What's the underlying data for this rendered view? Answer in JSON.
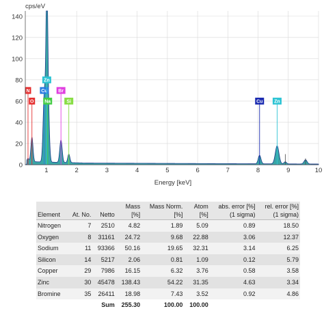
{
  "chart_data": {
    "type": "area",
    "title": "",
    "ylabel": "cps/eV",
    "xlabel": "Energy [keV]",
    "xlim": [
      0.3,
      10.0
    ],
    "ylim": [
      0,
      145
    ],
    "x_ticks": [
      1,
      2,
      3,
      4,
      5,
      6,
      7,
      8,
      9,
      10
    ],
    "y_ticks": [
      0,
      20,
      40,
      60,
      80,
      100,
      120,
      140
    ],
    "grid": true,
    "fill_color": "#3aa6a6",
    "line_color": "#1a3a8a",
    "peaks": [
      {
        "x": 0.39,
        "y": 3,
        "w": 0.03
      },
      {
        "x": 0.52,
        "y": 23,
        "w": 0.035
      },
      {
        "x": 0.93,
        "y": 65,
        "w": 0.04
      },
      {
        "x": 1.01,
        "y": 127,
        "w": 0.03
      },
      {
        "x": 1.05,
        "y": 60,
        "w": 0.04
      },
      {
        "x": 1.48,
        "y": 21,
        "w": 0.04
      },
      {
        "x": 1.74,
        "y": 8,
        "w": 0.035
      },
      {
        "x": 8.05,
        "y": 8,
        "w": 0.045
      },
      {
        "x": 8.63,
        "y": 17,
        "w": 0.06
      },
      {
        "x": 8.9,
        "y": 2,
        "w": 0.04
      },
      {
        "x": 9.57,
        "y": 4,
        "w": 0.05
      }
    ],
    "markers": [
      {
        "label": "N",
        "x": 0.39,
        "y": 70,
        "color": "#e53030",
        "line_top": 70
      },
      {
        "label": "Cu",
        "x": 0.93,
        "y": 70,
        "color": "#2a7de1",
        "line_top": 70
      },
      {
        "label": "Zn",
        "x": 1.01,
        "y": 80,
        "color": "#2ec4d4",
        "line_top": 80
      },
      {
        "label": "Br",
        "x": 1.48,
        "y": 70,
        "color": "#e040e0",
        "line_top": 70
      },
      {
        "label": "O",
        "x": 0.52,
        "y": 60,
        "color": "#e53030",
        "line_top": 60
      },
      {
        "label": "Na",
        "x": 1.04,
        "y": 60,
        "color": "#44cc44",
        "line_top": 60
      },
      {
        "label": "Si",
        "x": 1.74,
        "y": 60,
        "color": "#88dd44",
        "line_top": 60
      },
      {
        "label": "Cu",
        "x": 8.05,
        "y": 60,
        "color": "#1a2ab0",
        "line_top": 60
      },
      {
        "label": "Zn",
        "x": 8.63,
        "y": 60,
        "color": "#2ec4d4",
        "line_top": 60
      }
    ],
    "extra_lines": [
      {
        "x": 8.9,
        "y": 10,
        "color": "#444444"
      },
      {
        "x": 9.57,
        "y": 6,
        "color": "#444444"
      }
    ]
  },
  "table": {
    "headers": [
      {
        "line1": "Element",
        "line2": ""
      },
      {
        "line1": "At. No.",
        "line2": ""
      },
      {
        "line1": "Netto",
        "line2": ""
      },
      {
        "line1": "Mass",
        "line2": "[%]"
      },
      {
        "line1": "Mass Norm.",
        "line2": "[%]"
      },
      {
        "line1": "Atom",
        "line2": "[%]"
      },
      {
        "line1": "abs. error [%]",
        "line2": "(1 sigma)"
      },
      {
        "line1": "rel. error [%]",
        "line2": "(1 sigma)"
      }
    ],
    "rows": [
      [
        "Nitrogen",
        "7",
        "2510",
        "4.82",
        "1.89",
        "5.09",
        "0.89",
        "18.50"
      ],
      [
        "Oxygen",
        "8",
        "31161",
        "24.72",
        "9.68",
        "22.88",
        "3.06",
        "12.37"
      ],
      [
        "Sodium",
        "11",
        "93366",
        "50.16",
        "19.65",
        "32.31",
        "3.14",
        "6.25"
      ],
      [
        "Silicon",
        "14",
        "5217",
        "2.06",
        "0.81",
        "1.09",
        "0.12",
        "5.79"
      ],
      [
        "Copper",
        "29",
        "7986",
        "16.15",
        "6.32",
        "3.76",
        "0.58",
        "3.58"
      ],
      [
        "Zinc",
        "30",
        "45478",
        "138.43",
        "54.22",
        "31.35",
        "4.63",
        "3.34"
      ],
      [
        "Bromine",
        "35",
        "26411",
        "18.98",
        "7.43",
        "3.52",
        "0.92",
        "4.86"
      ]
    ],
    "sum": {
      "label": "Sum",
      "mass": "255.30",
      "norm": "100.00",
      "atom": "100.00"
    }
  }
}
